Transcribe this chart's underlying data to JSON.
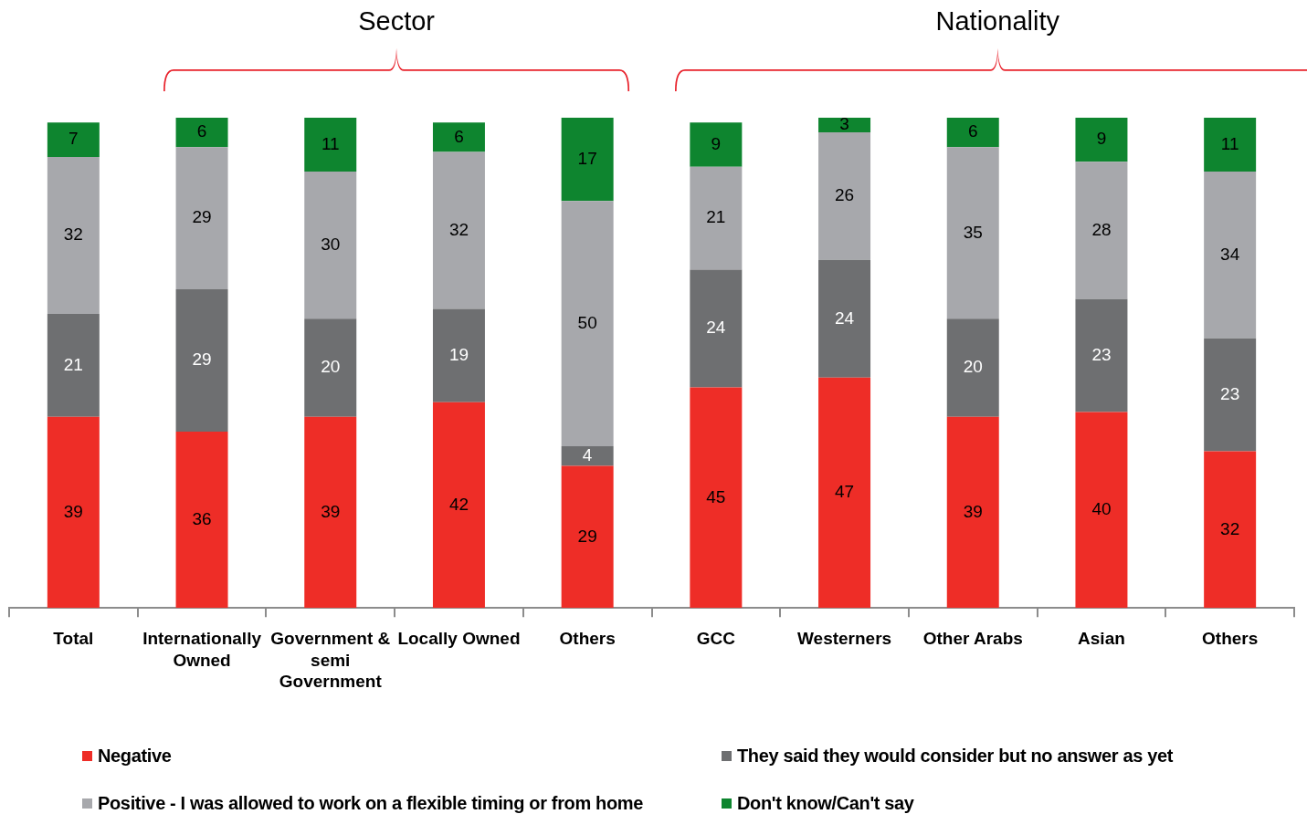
{
  "chart_data": {
    "type": "bar",
    "stacked": true,
    "data_labels": true,
    "legend": "bottom",
    "annotations": [
      "Sector",
      "Nationality"
    ],
    "categories": [
      "Total",
      "Internationally Owned",
      "Government & semi Government",
      "Locally Owned",
      "Others",
      "GCC",
      "Westerners",
      "Other Arabs",
      "Asian",
      "Others"
    ],
    "series": [
      {
        "name": "Negative",
        "color": "#ee2d27",
        "values": [
          39,
          36,
          39,
          42,
          29,
          45,
          47,
          39,
          40,
          32
        ]
      },
      {
        "name": "They said they would consider but no answer as yet",
        "color": "#6e6f71",
        "values": [
          21,
          29,
          20,
          19,
          4,
          24,
          24,
          20,
          23,
          23
        ]
      },
      {
        "name": "Positive - I was allowed to work on a flexible timing or from home",
        "color": "#a7a8ac",
        "values": [
          32,
          29,
          30,
          32,
          50,
          21,
          26,
          35,
          28,
          34
        ]
      },
      {
        "name": "Don't know/Can't say",
        "color": "#0e852f",
        "values": [
          7,
          6,
          11,
          6,
          17,
          9,
          3,
          6,
          9,
          11
        ]
      }
    ]
  }
}
